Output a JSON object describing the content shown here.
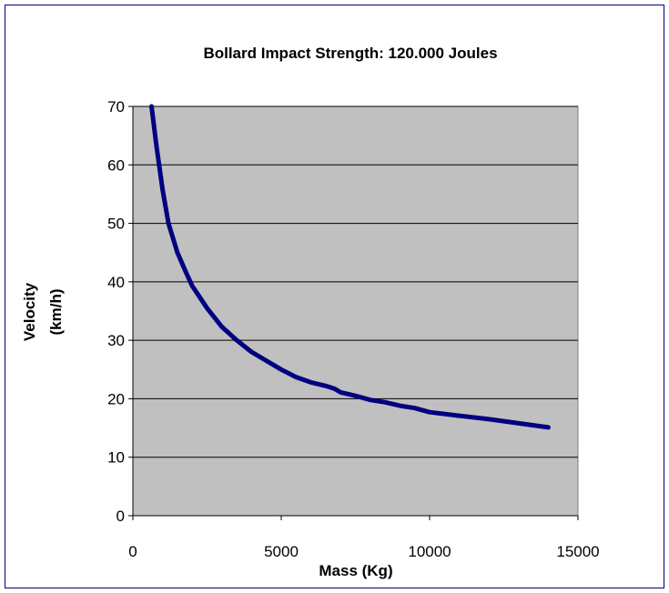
{
  "chart_data": {
    "type": "line",
    "title": "Bollard Impact Strength: 120.000 Joules",
    "xlabel": "Mass (Kg)",
    "ylabel_line1": "Velocity",
    "ylabel_line2": "(km/h)",
    "xlim": [
      0,
      15000
    ],
    "ylim": [
      0,
      70
    ],
    "x_ticks": [
      "0",
      "5000",
      "10000",
      "15000"
    ],
    "y_ticks": [
      "0",
      "10",
      "20",
      "30",
      "40",
      "50",
      "60",
      "70"
    ],
    "grid": "horizontal",
    "plot_background": "#c0c0c0",
    "line_color": "#000080",
    "series": [
      {
        "x": [
          630,
          800,
          1000,
          1200,
          1500,
          1800,
          2000,
          2500,
          3000,
          3500,
          4000,
          5000,
          5500,
          6000,
          6500,
          6800,
          7000,
          7500,
          8000,
          8500,
          9000,
          9500,
          10000,
          11000,
          12000,
          13000,
          14000
        ],
        "values": [
          70,
          63,
          55.8,
          50,
          45,
          41.5,
          39.3,
          35.5,
          32.3,
          30,
          28,
          25,
          23.7,
          22.8,
          22.2,
          21.7,
          21.1,
          20.5,
          19.8,
          19.4,
          18.8,
          18.4,
          17.7,
          17.1,
          16.5,
          15.8,
          15.1
        ]
      }
    ]
  }
}
